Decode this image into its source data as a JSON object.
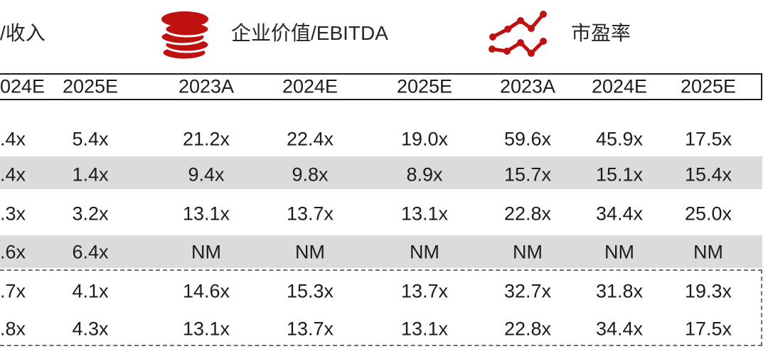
{
  "colors": {
    "accent_red": "#C01111",
    "row_stripe_gray": "#DBDBDB",
    "solid_border": "#1A1A1A",
    "dashed_border": "#6F6F6F"
  },
  "legend": {
    "ev_revenue_fragment": "/收入",
    "ev_ebitda": "企业价值/EBITDA",
    "pe": "市盈率"
  },
  "chart_data": {
    "type": "table",
    "section_headers": [
      {
        "label": "/收入",
        "icon": "cut-off-left"
      },
      {
        "label": "企业价值/EBITDA",
        "icon": "coin-stack"
      },
      {
        "label": "市盈率",
        "icon": "line-chart"
      }
    ],
    "column_headers": [
      "024E",
      "2025E",
      "2023A",
      "2024E",
      "2025E",
      "2023A",
      "2024E",
      "2025E"
    ],
    "rows": [
      [
        ".4x",
        "5.4x",
        "21.2x",
        "22.4x",
        "19.0x",
        "59.6x",
        "45.9x",
        "17.5x"
      ],
      [
        ".4x",
        "1.4x",
        "9.4x",
        "9.8x",
        "8.9x",
        "15.7x",
        "15.1x",
        "15.4x"
      ],
      [
        ".3x",
        "3.2x",
        "13.1x",
        "13.7x",
        "13.1x",
        "22.8x",
        "34.4x",
        "25.0x"
      ],
      [
        ".6x",
        "6.4x",
        "NM",
        "NM",
        "NM",
        "NM",
        "NM",
        "NM"
      ],
      [
        ".7x",
        "4.1x",
        "14.6x",
        "15.3x",
        "13.7x",
        "32.7x",
        "31.8x",
        "19.3x"
      ],
      [
        ".8x",
        "4.3x",
        "13.1x",
        "13.7x",
        "13.1x",
        "22.8x",
        "34.4x",
        "17.5x"
      ]
    ],
    "row_backgrounds": [
      "white",
      "gray",
      "white",
      "gray",
      "white",
      "white"
    ],
    "dashed_separator_after_row_index": 3,
    "dashed_box_around_last_two_rows": true,
    "left_edge_truncated": true
  }
}
